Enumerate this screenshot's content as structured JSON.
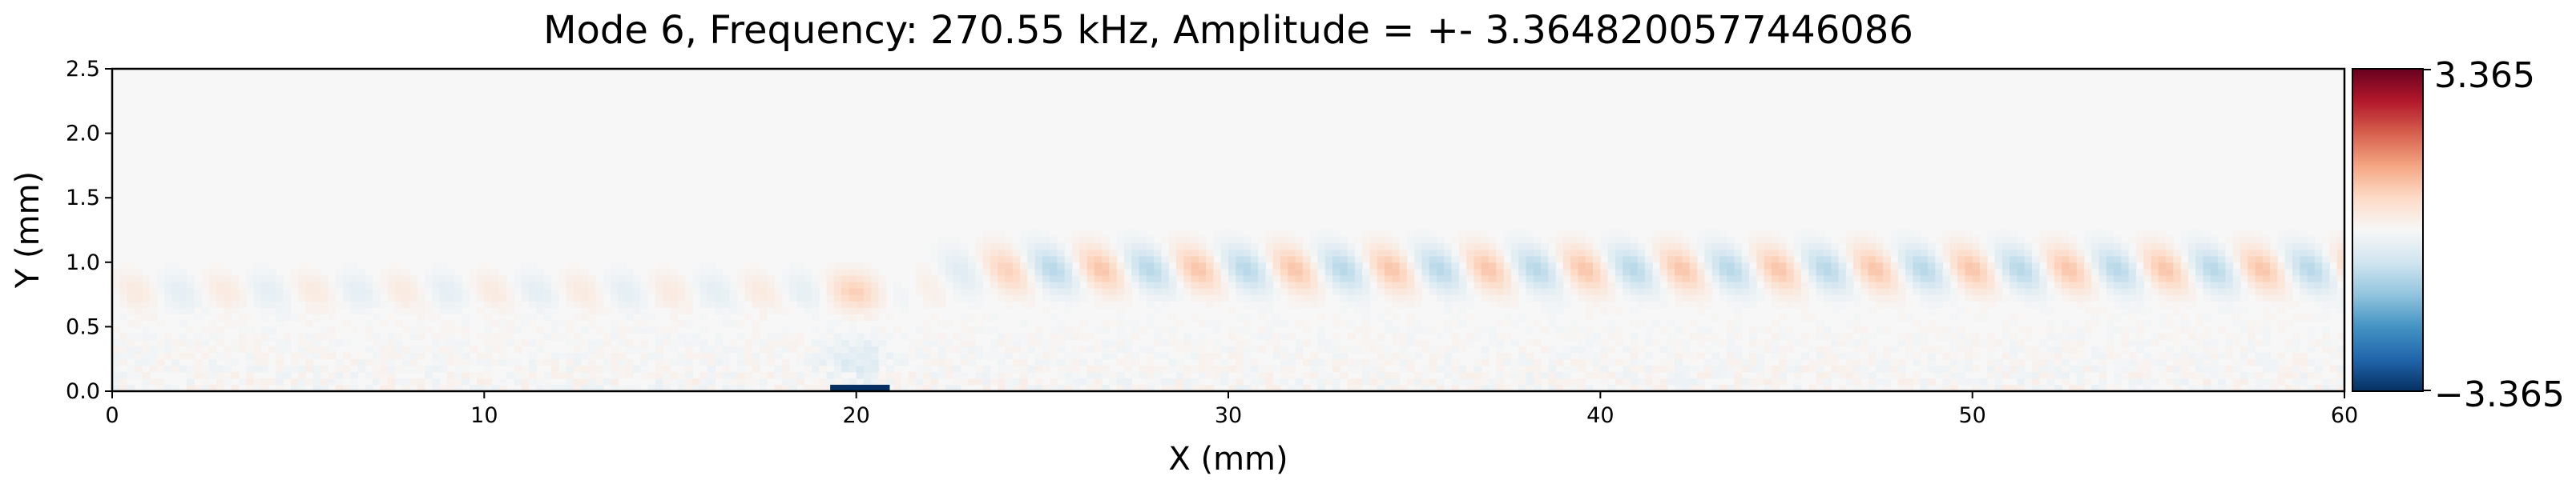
{
  "chart_data": {
    "type": "heatmap",
    "title": "Mode 6, Frequency: 270.55 kHz, Amplitude = +- 3.3648200577446086",
    "xlabel": "X (mm)",
    "ylabel": "Y (mm)",
    "xlim": [
      0,
      60
    ],
    "ylim": [
      0,
      2.5
    ],
    "x_ticks": [
      0,
      10,
      20,
      30,
      40,
      50,
      60
    ],
    "y_ticks": [
      0.0,
      0.5,
      1.0,
      1.5,
      2.0,
      2.5
    ],
    "x_tick_labels": [
      "0",
      "10",
      "20",
      "30",
      "40",
      "50",
      "60"
    ],
    "y_tick_labels": [
      "0.0",
      "0.5",
      "1.0",
      "1.5",
      "2.0",
      "2.5"
    ],
    "colormap": "RdBu_r",
    "vmin": -3.365,
    "vmax": 3.365,
    "colorbar_labels": {
      "max": "3.365",
      "min": "−3.365"
    },
    "grid": false,
    "features": [
      {
        "name": "upper-wave-band",
        "x_range": [
          21,
          60
        ],
        "y_center": 0.95,
        "amplitude_range": [
          -1.0,
          1.0
        ]
      },
      {
        "name": "lower-wave-band",
        "x_range": [
          0,
          21
        ],
        "y_center": 0.8,
        "amplitude_range": [
          -0.4,
          0.4
        ]
      },
      {
        "name": "source-element",
        "x_range": [
          19.3,
          20.9
        ],
        "y_range": [
          0.0,
          0.05
        ],
        "value": -3.365
      }
    ]
  },
  "colors": {
    "neutral": "#f7f7f7",
    "max": "#67001f",
    "min": "#053061"
  }
}
